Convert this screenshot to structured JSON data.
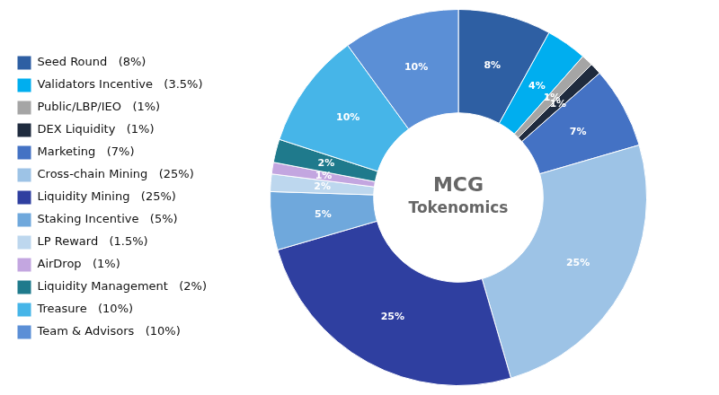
{
  "chart_data": {
    "type": "doughnut",
    "categories": [
      "Seed Round   (8%)",
      "Validators Incentive   (3.5%)",
      "Public/LBP/IEO   (1%)",
      "DEX Liquidity   (1%)",
      "Marketing   (7%)",
      "Cross-chain Mining   (25%)",
      "Liquidity Mining   (25%)",
      "Staking Incentive   (5%)",
      "LP Reward   (1.5%)",
      "AirDrop   (1%)",
      "Liquidity Management   (2%)",
      "Treasure   (10%)",
      "Team & Advisors   (10%)"
    ],
    "values": [
      8,
      3.5,
      1,
      1,
      7,
      25,
      25,
      5,
      1.5,
      1,
      2,
      10,
      10
    ],
    "value_labels": [
      "8%",
      "4%",
      "1%",
      "1%",
      "7%",
      "25%",
      "25%",
      "5%",
      "2%",
      "1%",
      "2%",
      "10%",
      "10%"
    ],
    "colors": [
      "#2E5FA3",
      "#00AEEF",
      "#A5A5A5",
      "#1F2B3E",
      "#4472C4",
      "#9DC3E6",
      "#2F3FA0",
      "#6FA8DC",
      "#BDD7EE",
      "#C3A6E0",
      "#1F7A8C",
      "#46B5E8",
      "#5B8FD6"
    ],
    "data_labels": true,
    "legend": "left",
    "annotations": [
      "MCG",
      "Tokenomics"
    ]
  }
}
